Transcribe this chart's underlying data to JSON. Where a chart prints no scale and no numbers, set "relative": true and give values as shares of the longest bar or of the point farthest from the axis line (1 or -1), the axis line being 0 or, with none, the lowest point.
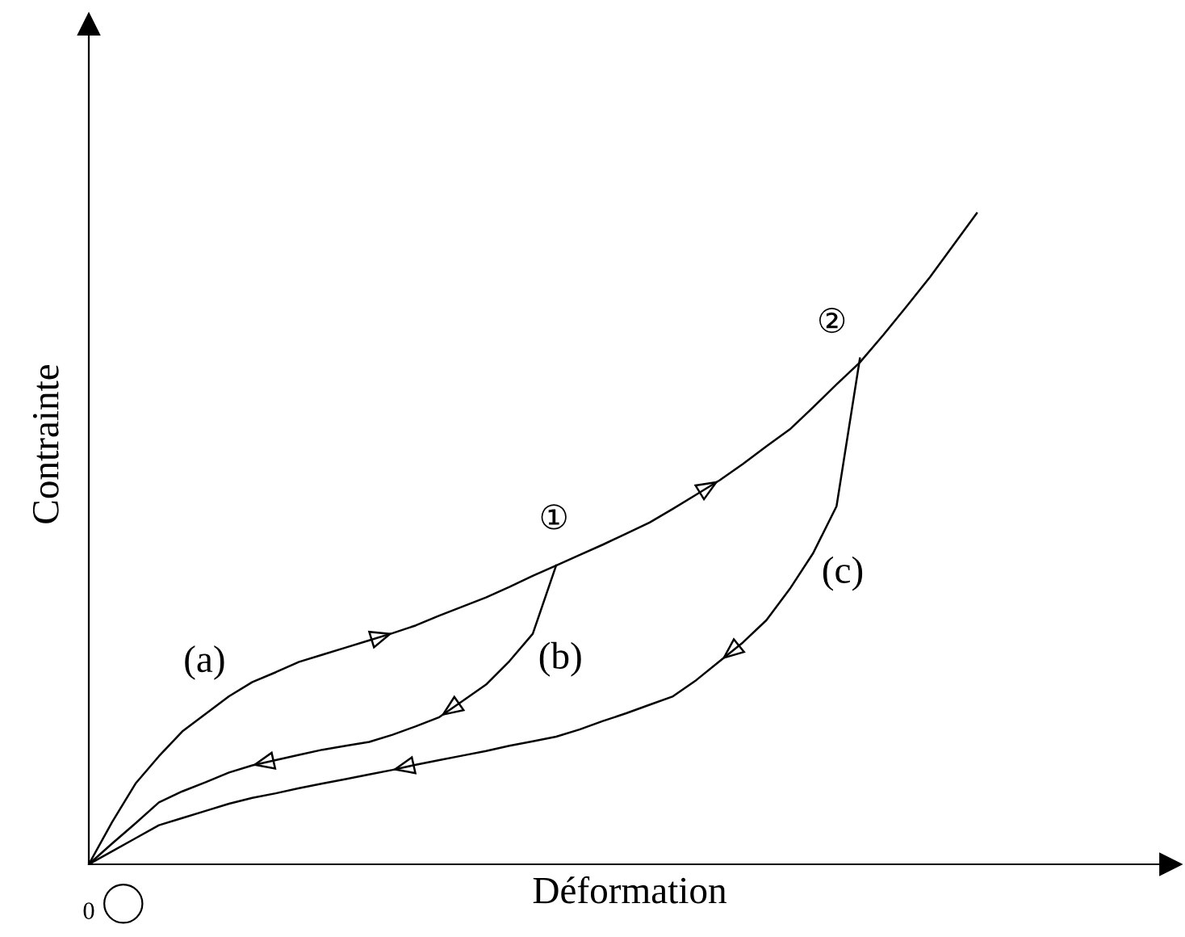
{
  "chart_data": {
    "type": "line",
    "relative": true,
    "xlabel": "Déformation",
    "ylabel": "Contrainte",
    "legend": false,
    "marker": "none",
    "line_style": "solid",
    "categories": [
      null,
      null,
      null,
      null,
      null,
      null,
      null,
      null,
      null,
      null,
      null,
      null,
      null,
      null,
      null,
      null,
      null,
      null,
      null,
      null,
      null,
      null,
      null,
      null,
      null,
      null,
      null,
      null,
      null,
      null,
      null,
      null,
      null,
      null,
      null,
      null,
      null,
      null,
      null
    ],
    "series": [
      {
        "color": "#000000",
        "values": [
          0,
          0.065,
          0.124,
          0.166,
          0.204,
          0.231,
          0.258,
          0.28,
          0.295,
          0.311,
          0.322,
          0.333,
          0.344,
          0.355,
          0.367,
          0.382,
          0.396,
          0.41,
          0.426,
          0.443,
          0.459,
          0.475,
          0.491,
          0.508,
          0.525,
          0.546,
          0.568,
          0.59,
          0.615,
          0.642,
          0.668,
          0.702,
          0.737,
          0.771,
          0.813,
          0.857,
          0.902,
          0.951,
          1.0
        ]
      },
      {
        "color": "#000000",
        "values": [
          0,
          0.032,
          0.063,
          0.095,
          0.112,
          0.126,
          0.141,
          0.152,
          0.16,
          0.168,
          0.176,
          0.182,
          0.188,
          0.199,
          0.212,
          0.226,
          0.251,
          0.276,
          0.312,
          0.354,
          0.459,
          null,
          null,
          null,
          null,
          null,
          null,
          null,
          null,
          null,
          null,
          null,
          null,
          null,
          null,
          null,
          null,
          null,
          null
        ]
      },
      {
        "color": "#000000",
        "values": [
          0,
          0.02,
          0.04,
          0.06,
          0.071,
          0.082,
          0.093,
          0.102,
          0.109,
          0.117,
          0.124,
          0.131,
          0.138,
          0.145,
          0.153,
          0.16,
          0.167,
          0.174,
          0.182,
          0.189,
          0.196,
          0.207,
          0.22,
          0.232,
          0.245,
          0.258,
          0.283,
          0.312,
          0.341,
          0.375,
          0.423,
          0.478,
          0.55,
          0.777,
          null,
          null,
          null,
          null,
          null
        ]
      }
    ],
    "annotations": [
      "(a)",
      "(b)",
      "(c)",
      "①",
      "②",
      "0"
    ]
  }
}
